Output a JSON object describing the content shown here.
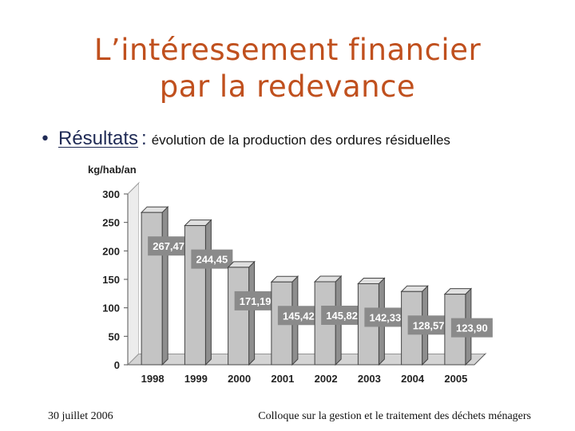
{
  "slide": {
    "title_line1": "L’intéressement financier",
    "title_line2": "par la redevance",
    "bullet_head": "Résultats",
    "bullet_colon": ":",
    "bullet_rest": "évolution de la production des ordures résiduelles",
    "footer_left": "30 juillet 2006",
    "footer_right": "Colloque sur la gestion et le traitement des déchets ménagers"
  },
  "chart_data": {
    "type": "bar",
    "ylabel": "kg/hab/an",
    "categories": [
      "1998",
      "1999",
      "2000",
      "2001",
      "2002",
      "2003",
      "2004",
      "2005"
    ],
    "values": [
      267.47,
      244.45,
      171.19,
      145.42,
      145.82,
      142.33,
      128.57,
      123.9
    ],
    "value_labels": [
      "267,47",
      "244,45",
      "171,19",
      "145,42",
      "145,82",
      "142,33",
      "128,57",
      "123,90"
    ],
    "yticks": [
      "0",
      "50",
      "100",
      "150",
      "200",
      "250",
      "300"
    ],
    "ylim": [
      0,
      300
    ],
    "grid": false,
    "legend": "none",
    "colors": {
      "bar": "#c4c4c4",
      "bar_side": "#8e8e8e",
      "label_box": "#8a8a8a",
      "label_text": "#ffffff"
    }
  }
}
